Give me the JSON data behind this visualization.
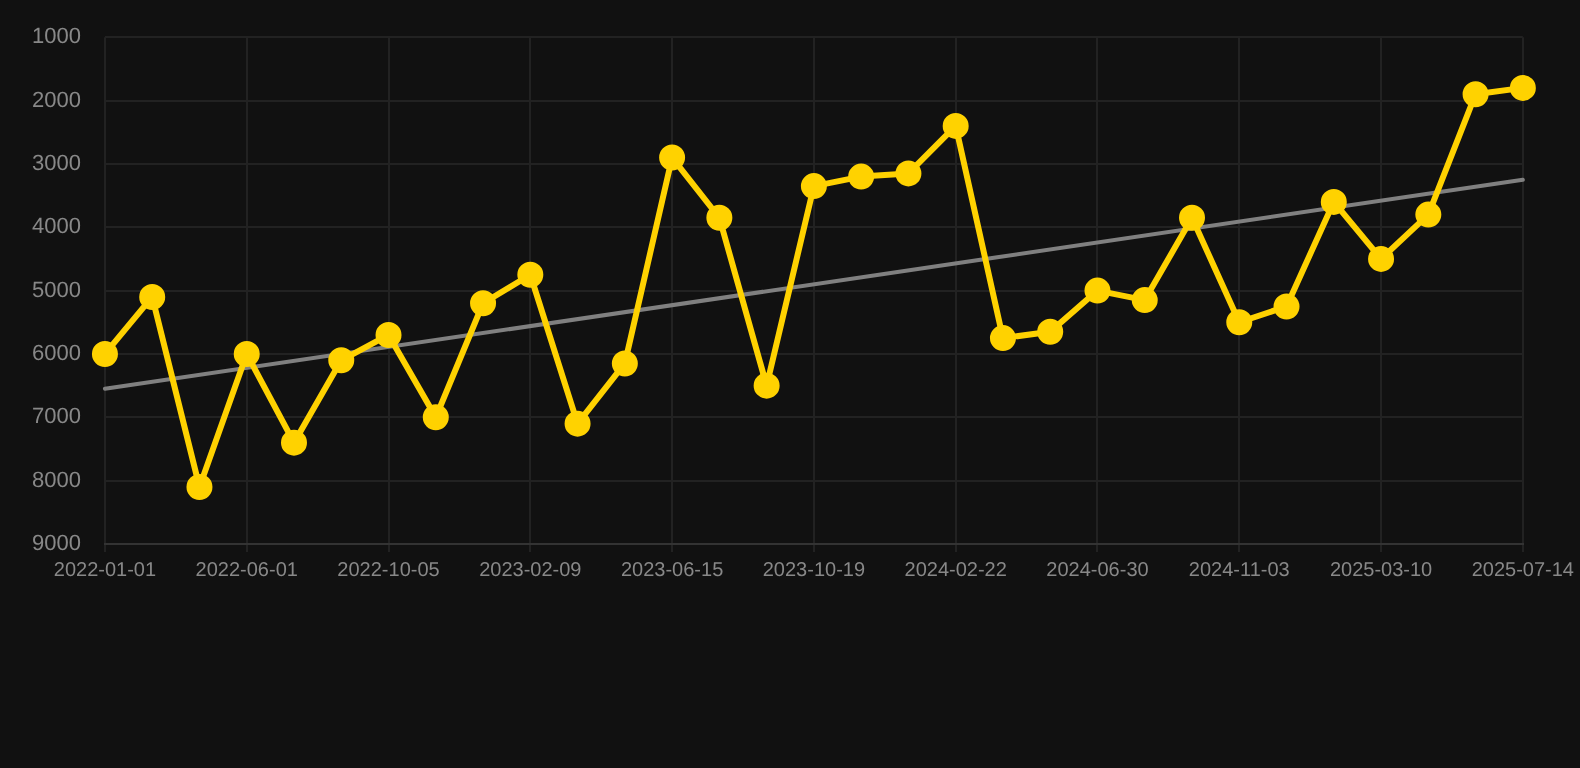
{
  "chart_data": {
    "type": "line",
    "categories": [
      "2022-01-01",
      null,
      null,
      "2022-06-01",
      null,
      null,
      "2022-10-05",
      null,
      null,
      "2023-02-09",
      null,
      null,
      "2023-06-15",
      null,
      null,
      "2023-10-19",
      null,
      null,
      "2024-02-22",
      null,
      null,
      "2024-06-30",
      null,
      null,
      "2024-11-03",
      null,
      null,
      "2025-03-10",
      null,
      null,
      "2025-07-14"
    ],
    "series": [
      {
        "color": "#ffd200",
        "values": [
          6000,
          5100,
          8100,
          6000,
          7400,
          6100,
          5700,
          7000,
          5200,
          4750,
          7100,
          6150,
          2900,
          3850,
          6500,
          3350,
          3200,
          3150,
          2400,
          5750,
          5650,
          5000,
          5150,
          3850,
          5500,
          5250,
          3600,
          4500,
          3800,
          1900,
          1800
        ]
      },
      {
        "type": "line",
        "color": "#808080",
        "marker": "none",
        "values": [
          6550,
          null,
          null,
          null,
          null,
          null,
          null,
          null,
          null,
          null,
          null,
          null,
          null,
          null,
          null,
          null,
          null,
          null,
          null,
          null,
          null,
          null,
          null,
          null,
          null,
          null,
          null,
          null,
          null,
          null,
          3250
        ]
      }
    ],
    "ylim": [
      9000,
      1000
    ],
    "yticks": [
      1000,
      2000,
      3000,
      4000,
      5000,
      6000,
      7000,
      8000,
      9000
    ],
    "grid": true,
    "marker": "circle",
    "line_style": "solid"
  }
}
